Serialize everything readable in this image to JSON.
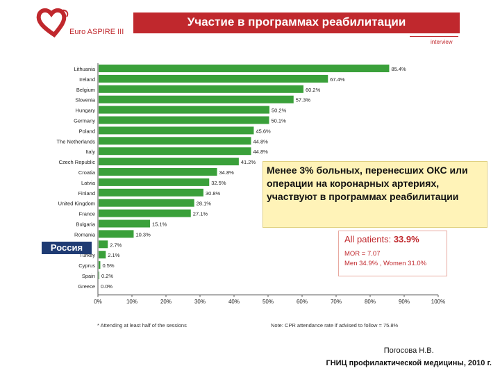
{
  "header": {
    "title": "Участие в программах реабилитации",
    "logo_text": "Euro ASPIRE III",
    "tag": "interview",
    "colors": {
      "accent": "#c0282d",
      "bar": "#3aa03a"
    }
  },
  "chart_data": {
    "type": "bar",
    "orientation": "horizontal",
    "categories": [
      "Lithuania",
      "Ireland",
      "Belgium",
      "Slovenia",
      "Hungary",
      "Germany",
      "Poland",
      "The Netherlands",
      "Italy",
      "Czech Republic",
      "Croatia",
      "Latvia",
      "Finland",
      "United Kingdom",
      "France",
      "Bulgaria",
      "Romania",
      "Russia",
      "Turkey",
      "Cyprus",
      "Spain",
      "Greece"
    ],
    "values": [
      85.4,
      67.4,
      60.2,
      57.3,
      50.2,
      50.1,
      45.6,
      44.8,
      44.8,
      41.2,
      34.8,
      32.5,
      30.8,
      28.1,
      27.1,
      15.1,
      10.3,
      2.7,
      2.1,
      0.5,
      0.2,
      0.0
    ],
    "value_labels": [
      "85.4%",
      "67.4%",
      "60.2%",
      "57.3%",
      "50.2%",
      "50.1%",
      "45.6%",
      "44.8%",
      "44.8%",
      "41.2%",
      "34.8%",
      "32.5%",
      "30.8%",
      "28.1%",
      "27.1%",
      "15.1%",
      "10.3%",
      "2.7%",
      "2.1%",
      "0.5%",
      "0.2%",
      "0.0%"
    ],
    "xlim": [
      0,
      100
    ],
    "xticks": [
      "0%",
      "10%",
      "20%",
      "30%",
      "40%",
      "50%",
      "60%",
      "70%",
      "80%",
      "90%",
      "100%"
    ],
    "grid": false,
    "legend": "none"
  },
  "russia_label": "Россия",
  "callout": {
    "text": "Менее 3% больных, перенесших ОКС или операции на коронарных артериях, участвуют в программах реабилитации"
  },
  "stats": {
    "all_patients_label": "All patients:",
    "all_patients_value": "33.9%",
    "mor": "MOR = 7.07",
    "men_women": "Men 34.9% , Women 31.0%"
  },
  "footnotes": {
    "left": "* Attending at least half of the sessions",
    "right": "Note: CPR attendance rate if advised to follow = 75.8%"
  },
  "author": {
    "name": "Погосова Н.В.",
    "org": "ГНИЦ профилактической медицины, 2010 г."
  }
}
